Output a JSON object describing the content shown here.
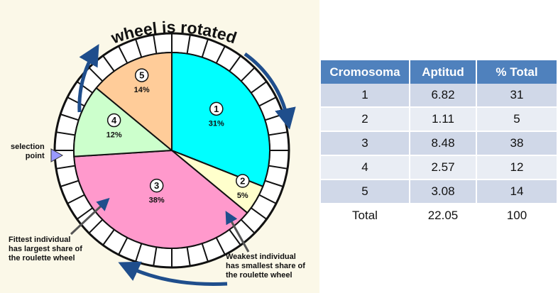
{
  "wheel": {
    "title": "wheel is rotated",
    "segments": [
      {
        "number": "1",
        "percent": "31%",
        "value": 31,
        "color": "#00ffff"
      },
      {
        "number": "2",
        "percent": "5%",
        "value": 5,
        "color": "#ffffcc"
      },
      {
        "number": "3",
        "percent": "38%",
        "value": 38,
        "color": "#ff99cc"
      },
      {
        "number": "4",
        "percent": "12%",
        "value": 12,
        "color": "#ccffcc"
      },
      {
        "number": "5",
        "percent": "14%",
        "value": 14,
        "color": "#ffcc99"
      }
    ],
    "selection_label": [
      "selection",
      "point"
    ],
    "fittest_note": [
      "Fittest individual",
      "has largest share of",
      "the roulette wheel"
    ],
    "weakest_note": [
      "Weakest individual",
      "has smallest share of",
      "the roulette wheel"
    ],
    "arrow_color": "#1f4e8c",
    "pointer_color": "#9999ff"
  },
  "table": {
    "headers": [
      "Cromosoma",
      "Aptitud",
      "% Total"
    ],
    "rows": [
      [
        "1",
        "6.82",
        "31"
      ],
      [
        "2",
        "1.11",
        "5"
      ],
      [
        "3",
        "8.48",
        "38"
      ],
      [
        "4",
        "2.57",
        "12"
      ],
      [
        "5",
        "3.08",
        "14"
      ],
      [
        "Total",
        "22.05",
        "100"
      ]
    ],
    "header_color": "#4f81bd"
  }
}
